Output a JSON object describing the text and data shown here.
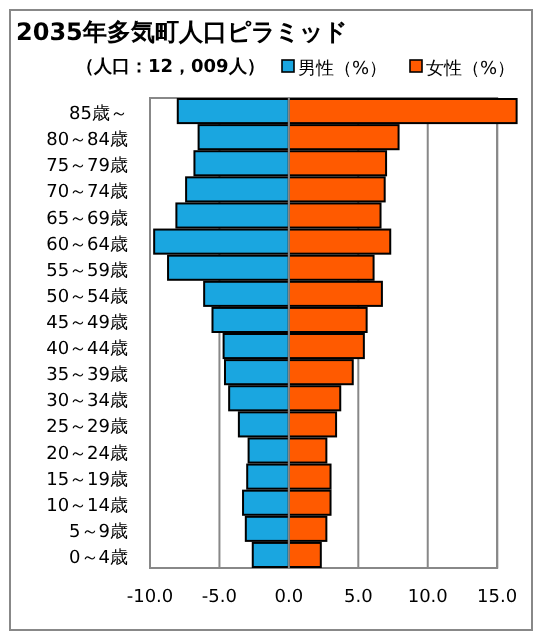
{
  "chart_data": {
    "type": "bar",
    "orientation": "horizontal",
    "stacked": true,
    "title": "2035年多気町人口ピラミッド",
    "subtitle": "（人口：12，009人）",
    "categories": [
      "85歳～",
      "80～84歳",
      "75～79歳",
      "70～74歳",
      "65～69歳",
      "60～64歳",
      "55～59歳",
      "50～54歳",
      "45～49歳",
      "40～44歳",
      "35～39歳",
      "30～34歳",
      "25～29歳",
      "20～24歳",
      "15～19歳",
      "10～14歳",
      "5～9歳",
      "0～4歳"
    ],
    "series": [
      {
        "name": "男性（%）",
        "color": "#1aa6e0",
        "values": [
          -8.0,
          -6.5,
          -6.8,
          -7.4,
          -8.1,
          -9.7,
          -8.7,
          -6.1,
          -5.5,
          -4.7,
          -4.6,
          -4.3,
          -3.6,
          -2.9,
          -3.0,
          -3.3,
          -3.1,
          -2.6
        ]
      },
      {
        "name": "女性（%）",
        "color": "#ff5a00",
        "values": [
          16.4,
          7.9,
          7.0,
          6.9,
          6.6,
          7.3,
          6.1,
          6.7,
          5.6,
          5.4,
          4.6,
          3.7,
          3.4,
          2.7,
          3.0,
          3.0,
          2.7,
          2.3
        ]
      }
    ],
    "xlim": [
      -10,
      16.5
    ],
    "xticks": [
      {
        "value": -10,
        "label": "-10.0"
      },
      {
        "value": -5,
        "label": "-5.0"
      },
      {
        "value": 0,
        "label": "0.0"
      },
      {
        "value": 5,
        "label": "5.0"
      },
      {
        "value": 10,
        "label": "10.0"
      },
      {
        "value": 15,
        "label": "15.0"
      }
    ],
    "grid": "x",
    "legend": "top right"
  }
}
